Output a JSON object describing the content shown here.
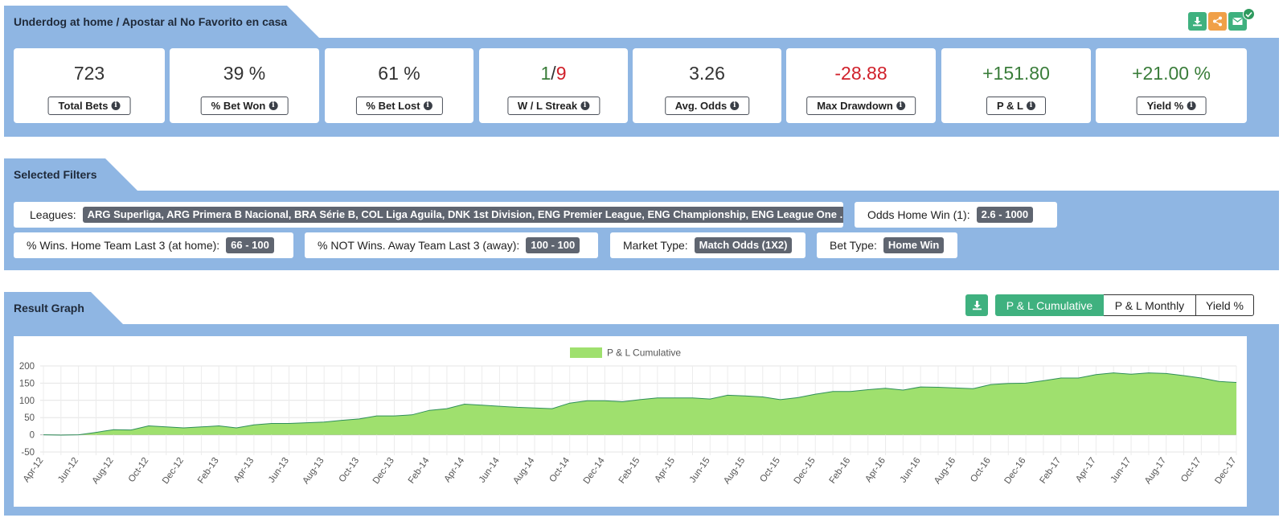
{
  "header": {
    "title": "Underdog at home / Apostar al No Favorito en casa",
    "tools": [
      {
        "name": "download-icon",
        "color": "#3fb17f"
      },
      {
        "name": "share-icon",
        "color": "#f0a048"
      },
      {
        "name": "email-icon",
        "color": "#3fb17f"
      }
    ]
  },
  "stats": [
    {
      "value": "723",
      "label": "Total Bets",
      "color": "#333333"
    },
    {
      "value": "39 %",
      "label": "% Bet Won",
      "color": "#333333"
    },
    {
      "value": "61 %",
      "label": "% Bet Lost",
      "color": "#333333"
    },
    {
      "value_win": "1",
      "value_sep": "/",
      "value_loss": "9",
      "label": "W / L Streak",
      "color": "#333333"
    },
    {
      "value": "3.26",
      "label": "Avg. Odds",
      "color": "#333333"
    },
    {
      "value": "-28.88",
      "label": "Max Drawdown",
      "color": "#d0202a"
    },
    {
      "value": "+151.80",
      "label": "P & L",
      "color": "#3a7d3a"
    },
    {
      "value": "+21.00 %",
      "label": "Yield %",
      "color": "#3a7d3a"
    }
  ],
  "filters_section": {
    "title": "Selected Filters",
    "filters": [
      {
        "label": "Leagues:",
        "value": "ARG Superliga, ARG Primera B Nacional, BRA Série B, COL Liga Aguila, DNK 1st Division, ENG Premier League, ENG Championship, ENG League One ..."
      },
      {
        "label": "Odds Home Win (1):",
        "value": "2.6 - 1000"
      },
      {
        "label": "% Wins. Home Team Last 3 (at home):",
        "value": "66 - 100"
      },
      {
        "label": "% NOT Wins. Away Team Last 3 (away):",
        "value": "100 - 100"
      },
      {
        "label": "Market Type:",
        "value": "Match Odds (1X2)"
      },
      {
        "label": "Bet Type:",
        "value": "Home Win"
      }
    ]
  },
  "graph_section": {
    "title": "Result Graph",
    "tabs": [
      "P & L Cumulative",
      "P & L Monthly",
      "Yield %"
    ],
    "active_tab": 0
  },
  "chart_data": {
    "type": "area",
    "legend": "P & L Cumulative",
    "fill_color": "#9fe06e",
    "line_color": "#2f8f5a",
    "ylim": [
      -50,
      200
    ],
    "yticks": [
      -50,
      0,
      50,
      100,
      150,
      200
    ],
    "x": [
      "Apr-12",
      "May-12",
      "Jun-12",
      "Jul-12",
      "Aug-12",
      "Sep-12",
      "Oct-12",
      "Nov-12",
      "Dec-12",
      "Jan-13",
      "Feb-13",
      "Mar-13",
      "Apr-13",
      "May-13",
      "Jun-13",
      "Jul-13",
      "Aug-13",
      "Sep-13",
      "Oct-13",
      "Nov-13",
      "Dec-13",
      "Jan-14",
      "Feb-14",
      "Mar-14",
      "Apr-14",
      "May-14",
      "Jun-14",
      "Jul-14",
      "Aug-14",
      "Sep-14",
      "Oct-14",
      "Nov-14",
      "Dec-14",
      "Jan-15",
      "Feb-15",
      "Mar-15",
      "Apr-15",
      "May-15",
      "Jun-15",
      "Jul-15",
      "Aug-15",
      "Sep-15",
      "Oct-15",
      "Nov-15",
      "Dec-15",
      "Jan-16",
      "Feb-16",
      "Mar-16",
      "Apr-16",
      "May-16",
      "Jun-16",
      "Jul-16",
      "Aug-16",
      "Sep-16",
      "Oct-16",
      "Nov-16",
      "Dec-16",
      "Jan-17",
      "Feb-17",
      "Mar-17",
      "Apr-17",
      "May-17",
      "Jun-17",
      "Jul-17",
      "Aug-17",
      "Sep-17",
      "Oct-17",
      "Nov-17",
      "Dec-17"
    ],
    "xtick_labels": [
      "Apr-12",
      "Jun-12",
      "Aug-12",
      "Oct-12",
      "Dec-12",
      "Feb-13",
      "Apr-13",
      "Jun-13",
      "Aug-13",
      "Oct-13",
      "Dec-13",
      "Feb-14",
      "Apr-14",
      "Jun-14",
      "Aug-14",
      "Oct-14",
      "Dec-14",
      "Feb-15",
      "Apr-15",
      "Jun-15",
      "Aug-15",
      "Oct-15",
      "Dec-15",
      "Feb-16",
      "Apr-16",
      "Jun-16",
      "Aug-16",
      "Oct-16",
      "Dec-16",
      "Feb-17",
      "Apr-17",
      "Jun-17",
      "Aug-17",
      "Oct-17",
      "Dec-17"
    ],
    "values": [
      0,
      -1,
      0,
      7,
      15,
      14,
      26,
      23,
      20,
      23,
      26,
      20,
      29,
      33,
      33,
      35,
      37,
      42,
      46,
      55,
      55,
      58,
      71,
      76,
      89,
      86,
      83,
      80,
      78,
      76,
      92,
      99,
      99,
      96,
      102,
      107,
      107,
      107,
      104,
      115,
      113,
      110,
      102,
      108,
      118,
      126,
      126,
      131,
      135,
      130,
      139,
      138,
      136,
      134,
      146,
      149,
      150,
      157,
      165,
      165,
      175,
      180,
      176,
      180,
      178,
      172,
      165,
      155,
      152
    ]
  }
}
